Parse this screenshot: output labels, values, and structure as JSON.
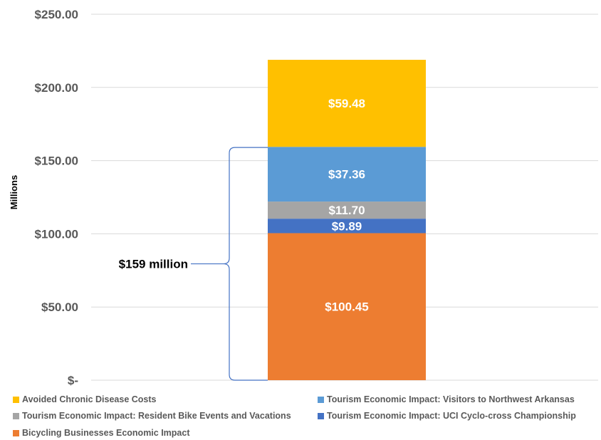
{
  "chart_data": {
    "type": "bar",
    "stacked": true,
    "categories": [
      ""
    ],
    "ylabel": "Millions",
    "ylim": [
      0,
      250
    ],
    "yticks": [
      "$-",
      "$50.00",
      "$100.00",
      "$150.00",
      "$200.00",
      "$250.00"
    ],
    "grid": true,
    "legend_position": "bottom",
    "series": [
      {
        "name": "Bicycling Businesses Economic Impact",
        "values": [
          100.45
        ],
        "label": "$100.45",
        "color": "#ED7D31"
      },
      {
        "name": "Tourism Economic Impact: UCI Cyclo-cross Championship",
        "values": [
          9.89
        ],
        "label": "$9.89",
        "color": "#4472C4"
      },
      {
        "name": "Tourism Economic Impact: Resident Bike Events and Vacations",
        "values": [
          11.7
        ],
        "label": "$11.70",
        "color": "#A5A5A5"
      },
      {
        "name": "Tourism Economic Impact: Visitors to Northwest Arkansas",
        "values": [
          37.36
        ],
        "label": "$37.36",
        "color": "#5B9BD5"
      },
      {
        "name": "Avoided Chronic Disease Costs",
        "values": [
          59.48
        ],
        "label": "$59.48",
        "color": "#FFC000"
      }
    ],
    "annotation": {
      "text": "$159 million",
      "from": 0,
      "to": 159
    }
  }
}
